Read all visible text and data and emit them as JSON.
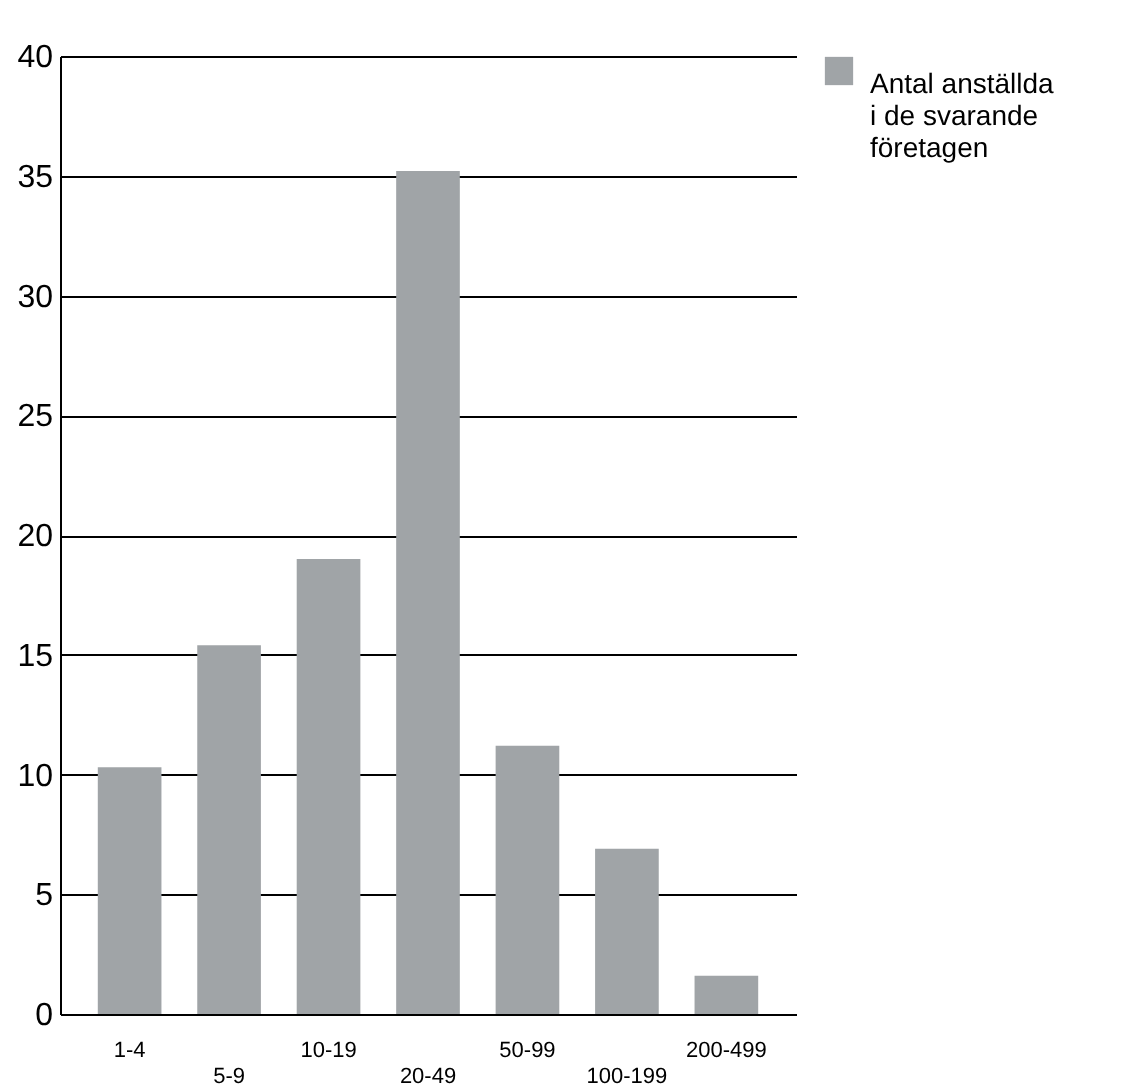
{
  "chart_data": {
    "type": "bar",
    "categories": [
      "1-4",
      "5-9",
      "10-19",
      "20-49",
      "50-99",
      "100-199",
      "200-499"
    ],
    "series": [
      {
        "name": "Antal anställda i de svarande företagen",
        "color": "#a0a4a7",
        "values": [
          10.3,
          15.4,
          19.0,
          35.2,
          11.2,
          6.9,
          1.6
        ]
      }
    ],
    "ylim": [
      0,
      40
    ],
    "yticks": [
      0,
      5,
      10,
      15,
      20,
      25,
      30,
      35,
      40
    ],
    "grid": "y",
    "legend": "right"
  }
}
